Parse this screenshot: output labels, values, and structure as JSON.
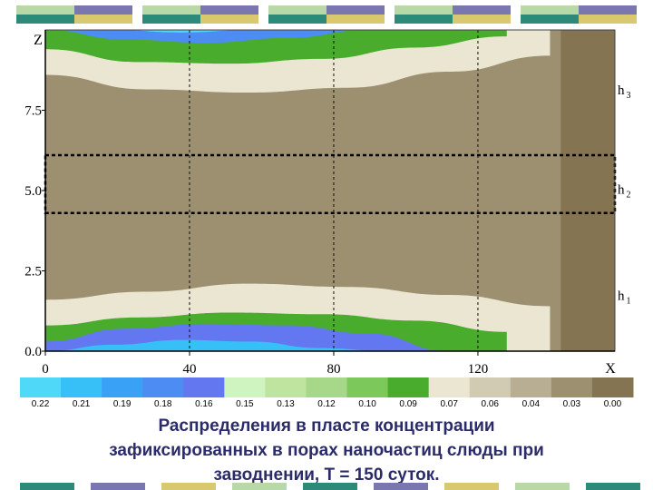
{
  "chart_data": {
    "type": "heatmap",
    "title": "",
    "xlabel": "X",
    "ylabel": "Z",
    "xlim": [
      0,
      158
    ],
    "ylim": [
      0,
      10
    ],
    "x_ticks": [
      "0",
      "40",
      "80",
      "120"
    ],
    "y_ticks": [
      "0.0",
      "2.5",
      "5.0",
      "7.5"
    ],
    "layer_labels": [
      "h 3",
      "h 2",
      "h 1"
    ],
    "layer_boundaries_z": [
      4.3,
      6.1
    ],
    "grid_x": [
      40,
      80,
      120
    ],
    "colorbar": {
      "labels": [
        "0.22",
        "0.21",
        "0.19",
        "0.18",
        "0.16",
        "0.15",
        "0.13",
        "0.12",
        "0.10",
        "0.09",
        "0.07",
        "0.06",
        "0.04",
        "0.03",
        "0.00"
      ],
      "colors": [
        "#4fd8f8",
        "#37bff8",
        "#3aa2f6",
        "#4d8cf3",
        "#6378f0",
        "#d0f4c0",
        "#bfe4a0",
        "#a7d88a",
        "#7cc85a",
        "#4aac2c",
        "#ebe6d2",
        "#d2cbb4",
        "#b8ae94",
        "#9c9070",
        "#857452"
      ]
    },
    "bands_bottom": [
      {
        "value": 0.07,
        "top": [
          1.6,
          1.85,
          2.1,
          2.0,
          1.75,
          1.4
        ],
        "x_end": 140
      },
      {
        "value": 0.09,
        "top": [
          0.8,
          1.05,
          1.2,
          1.15,
          0.95,
          0.6
        ],
        "x_end": 128
      },
      {
        "value": 0.16,
        "top": [
          0.3,
          0.7,
          0.85,
          0.8,
          0.55,
          0.0
        ],
        "x_end": 112
      },
      {
        "value": 0.21,
        "top": [
          0.0,
          0.2,
          0.35,
          0.3,
          0.1,
          0.0
        ],
        "x_end": 95
      }
    ],
    "bands_top": [
      {
        "value": 0.07,
        "bottom": [
          8.6,
          8.15,
          8.05,
          8.2,
          8.7,
          9.2
        ],
        "x_end": 140
      },
      {
        "value": 0.09,
        "bottom": [
          9.4,
          9.0,
          8.95,
          9.1,
          9.45,
          9.8
        ],
        "x_end": 128
      },
      {
        "value": 0.18,
        "bottom": [
          10.0,
          9.7,
          9.6,
          9.75,
          10.0,
          10.0
        ],
        "x_end": 112
      },
      {
        "value": 0.22,
        "bottom": [
          10.0,
          10.0,
          9.92,
          10.0,
          10.0,
          10.0
        ],
        "x_end": 95
      }
    ],
    "right_zone": {
      "value": 0.0,
      "x_start": 143
    }
  },
  "caption": {
    "line1": "Распределения в пласте концентрации",
    "line2": "зафиксированных в порах наночастиц слюды при",
    "line3": "заводнении, T = 150 суток."
  }
}
